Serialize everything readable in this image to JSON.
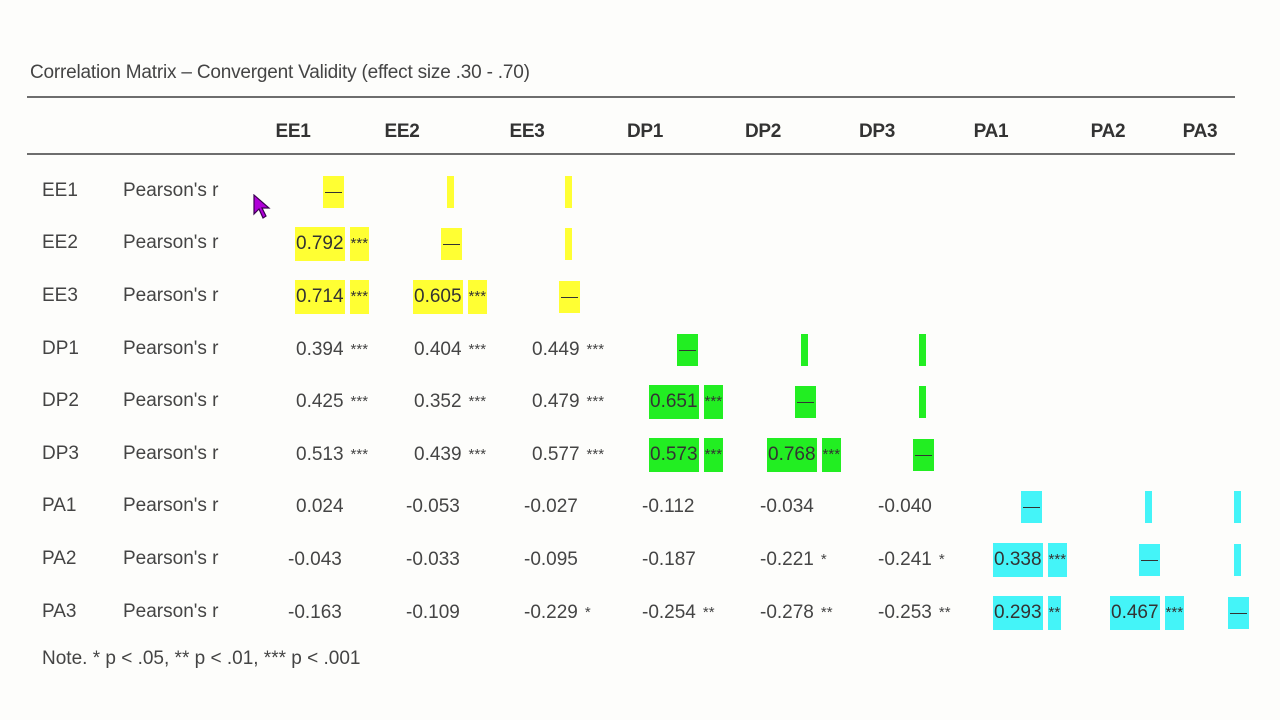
{
  "title": "Correlation Matrix – Convergent Validity (effect size .30 - .70)",
  "columns": [
    "EE1",
    "EE2",
    "EE3",
    "DP1",
    "DP2",
    "DP3",
    "PA1",
    "PA2",
    "PA3"
  ],
  "stat_label": "Pearson's r",
  "diagonal_symbol": "—",
  "highlight_colors": {
    "EE": "#ffff33",
    "DP": "#22ee22",
    "PA": "#44f4f8"
  },
  "rows": [
    {
      "label": "EE1",
      "cells": []
    },
    {
      "label": "EE2",
      "cells": [
        {
          "r": "0.792",
          "sig": "***",
          "hl": "EE"
        }
      ]
    },
    {
      "label": "EE3",
      "cells": [
        {
          "r": "0.714",
          "sig": "***",
          "hl": "EE"
        },
        {
          "r": "0.605",
          "sig": "***",
          "hl": "EE"
        }
      ]
    },
    {
      "label": "DP1",
      "cells": [
        {
          "r": "0.394",
          "sig": "***"
        },
        {
          "r": "0.404",
          "sig": "***"
        },
        {
          "r": "0.449",
          "sig": "***"
        }
      ]
    },
    {
      "label": "DP2",
      "cells": [
        {
          "r": "0.425",
          "sig": "***"
        },
        {
          "r": "0.352",
          "sig": "***"
        },
        {
          "r": "0.479",
          "sig": "***"
        },
        {
          "r": "0.651",
          "sig": "***",
          "hl": "DP"
        }
      ]
    },
    {
      "label": "DP3",
      "cells": [
        {
          "r": "0.513",
          "sig": "***"
        },
        {
          "r": "0.439",
          "sig": "***"
        },
        {
          "r": "0.577",
          "sig": "***"
        },
        {
          "r": "0.573",
          "sig": "***",
          "hl": "DP"
        },
        {
          "r": "0.768",
          "sig": "***",
          "hl": "DP"
        }
      ]
    },
    {
      "label": "PA1",
      "cells": [
        {
          "r": "0.024",
          "sig": ""
        },
        {
          "r": "-0.053",
          "sig": ""
        },
        {
          "r": "-0.027",
          "sig": ""
        },
        {
          "r": "-0.112",
          "sig": ""
        },
        {
          "r": "-0.034",
          "sig": ""
        },
        {
          "r": "-0.040",
          "sig": ""
        }
      ]
    },
    {
      "label": "PA2",
      "cells": [
        {
          "r": "-0.043",
          "sig": ""
        },
        {
          "r": "-0.033",
          "sig": ""
        },
        {
          "r": "-0.095",
          "sig": ""
        },
        {
          "r": "-0.187",
          "sig": ""
        },
        {
          "r": "-0.221",
          "sig": "*"
        },
        {
          "r": "-0.241",
          "sig": "*"
        },
        {
          "r": "0.338",
          "sig": "***",
          "hl": "PA"
        }
      ]
    },
    {
      "label": "PA3",
      "cells": [
        {
          "r": "-0.163",
          "sig": ""
        },
        {
          "r": "-0.109",
          "sig": ""
        },
        {
          "r": "-0.229",
          "sig": "*"
        },
        {
          "r": "-0.254",
          "sig": "**"
        },
        {
          "r": "-0.278",
          "sig": "**"
        },
        {
          "r": "-0.253",
          "sig": "**"
        },
        {
          "r": "0.293",
          "sig": "**",
          "hl": "PA"
        },
        {
          "r": "0.467",
          "sig": "***",
          "hl": "PA"
        }
      ]
    }
  ],
  "note": "Note. * p < .05, ** p < .01, *** p < .001"
}
